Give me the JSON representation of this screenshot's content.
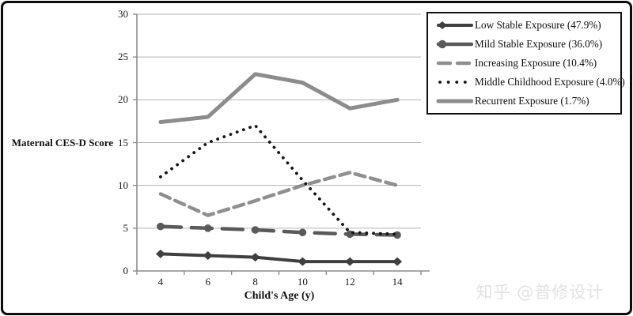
{
  "figure": {
    "watermark": "知乎 @普修设计"
  },
  "chart_data": {
    "type": "line",
    "title": "",
    "xlabel": "Child's Age (y)",
    "ylabel": "Maternal CES-D Score",
    "categories": [
      4,
      6,
      8,
      10,
      12,
      14
    ],
    "ylim": [
      0,
      30
    ],
    "yticks": [
      0,
      5,
      10,
      15,
      20,
      25,
      30
    ],
    "grid": "horizontal",
    "legend_position": "top-right",
    "axis_color": "#8c8c8c",
    "gridline_color": "#b3b3b3",
    "series": [
      {
        "name": "Low Stable Exposure (47.9%)",
        "values": [
          2,
          1.8,
          1.6,
          1.1,
          1.1,
          1.1
        ],
        "color": "#3f3f3f",
        "style": "solid",
        "marker": "diamond",
        "width": 4
      },
      {
        "name": "Mild Stable Exposure (36.0%)",
        "values": [
          5.2,
          5.0,
          4.8,
          4.5,
          4.3,
          4.2
        ],
        "color": "#595959",
        "style": "long-dash",
        "marker": "circle",
        "width": 4.5
      },
      {
        "name": "Increasing Exposure (10.4%)",
        "values": [
          9,
          6.5,
          8.2,
          10,
          11.5,
          10
        ],
        "color": "#8f8f8f",
        "style": "dash",
        "marker": "none",
        "width": 4.5
      },
      {
        "name": "Middle Childhood Exposure (4.0%)",
        "values": [
          11,
          15,
          17,
          10.6,
          4.5,
          4.3
        ],
        "color": "#141414",
        "style": "dot",
        "marker": "none",
        "width": 3.8
      },
      {
        "name": "Recurrent Exposure (1.7%)",
        "values": [
          17.4,
          18,
          23,
          22,
          19,
          20
        ],
        "color": "#8c8c8c",
        "style": "solid",
        "marker": "none",
        "width": 5
      }
    ]
  }
}
